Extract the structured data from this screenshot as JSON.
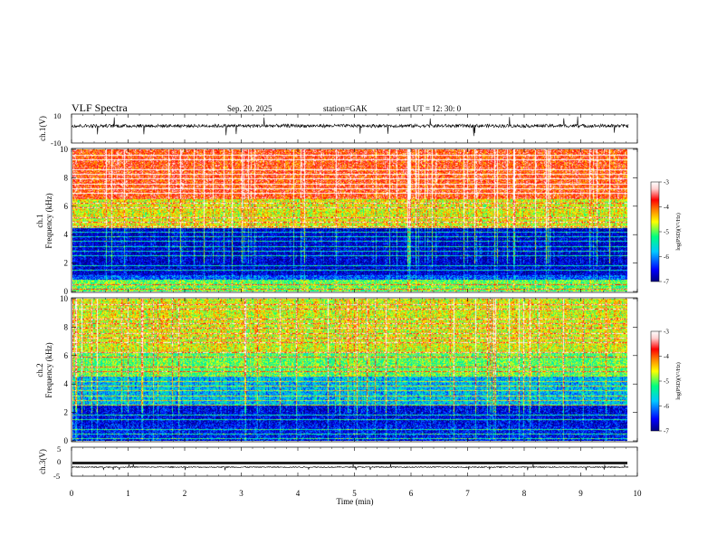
{
  "header": {
    "title": "VLF  Spectra",
    "date": "Sep. 20. 2025",
    "station": "station=GAK",
    "start": "start  UT  =    12: 30: 0"
  },
  "colorbars": {
    "label": "log(PSD)(V²/Hz)",
    "ticks": [
      "-3",
      "-4",
      "-5",
      "-6",
      "-7"
    ],
    "stops": [
      "#000080",
      "#0000ff",
      "#00c8ff",
      "#00ff80",
      "#ffff00",
      "#ff8000",
      "#ff0000",
      "#ffd0d0",
      "#ffffff"
    ]
  },
  "chart_data": [
    {
      "type": "line",
      "panel": "channel-1-waveform",
      "ylabel": "ch.1(V)",
      "ylim": [
        -10,
        10
      ],
      "yticks": [
        "10",
        "-10"
      ],
      "xlim": [
        0,
        10
      ],
      "baseline": 2,
      "grid": false,
      "line_color": "#000000"
    },
    {
      "type": "heatmap",
      "panel": "channel-1-spectrogram",
      "ylabel": "ch.1\nFrequency  (kHz)",
      "ylim": [
        0,
        10
      ],
      "yticks": [
        "0",
        "2",
        "4",
        "6",
        "8",
        "10"
      ],
      "xlim": [
        0,
        9.84
      ],
      "zlim": [
        -7,
        -3
      ],
      "zlabel": "log(PSD)(V²/Hz)",
      "bands": [
        {
          "from_khz": 0,
          "to_khz": 0.8,
          "level": -5.0
        },
        {
          "from_khz": 0.8,
          "to_khz": 1.2,
          "level": -6.2
        },
        {
          "from_khz": 1.2,
          "to_khz": 4.5,
          "level": -6.7
        },
        {
          "from_khz": 4.5,
          "to_khz": 6.5,
          "level": -4.6
        },
        {
          "from_khz": 6.5,
          "to_khz": 10,
          "level": -3.8
        }
      ]
    },
    {
      "type": "heatmap",
      "panel": "channel-2-spectrogram",
      "ylabel": "ch.2\nFrequency  (kHz)",
      "ylim": [
        0,
        10
      ],
      "yticks": [
        "0",
        "2",
        "4",
        "6",
        "8",
        "10"
      ],
      "xlim": [
        0,
        9.84
      ],
      "zlim": [
        -7,
        -3
      ],
      "zlabel": "log(PSD)(V²/Hz)",
      "bands": [
        {
          "from_khz": 0,
          "to_khz": 1.2,
          "level": -6.5
        },
        {
          "from_khz": 1.2,
          "to_khz": 2.5,
          "level": -6.6
        },
        {
          "from_khz": 2.5,
          "to_khz": 4.6,
          "level": -5.8
        },
        {
          "from_khz": 4.6,
          "to_khz": 6.2,
          "level": -5.0
        },
        {
          "from_khz": 6.2,
          "to_khz": 10,
          "level": -4.6
        }
      ]
    },
    {
      "type": "line",
      "panel": "channel-3-waveform",
      "ylabel": "ch.3(V)",
      "ylim": [
        -5,
        5
      ],
      "yticks": [
        "5",
        "0",
        "-5"
      ],
      "xlim": [
        0,
        10
      ],
      "baseline": -2,
      "grid": false,
      "line_color": "#000000"
    }
  ],
  "xaxis": {
    "label": "Time  (min)",
    "ticks": [
      "0",
      "1",
      "2",
      "3",
      "4",
      "5",
      "6",
      "7",
      "8",
      "9",
      "10"
    ],
    "range": [
      0,
      10
    ]
  }
}
